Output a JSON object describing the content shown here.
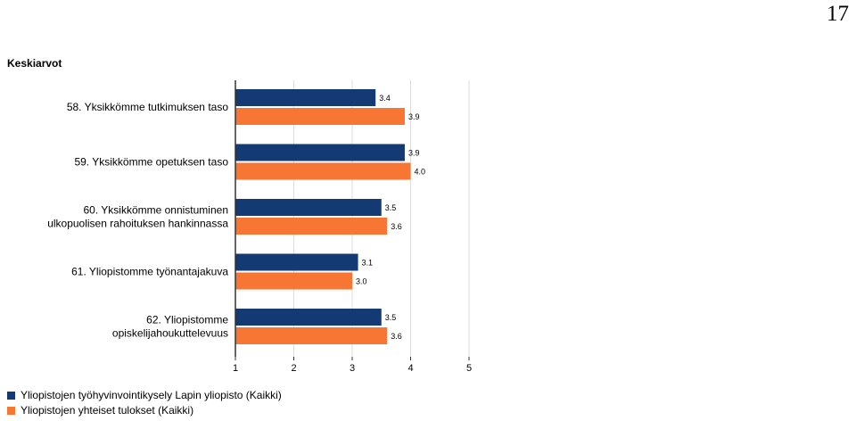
{
  "page": {
    "number": "17"
  },
  "colors": {
    "series1": "#143a74",
    "series2": "#f77634",
    "axis": "#333333",
    "grid": "#dddddd"
  },
  "chart_data": {
    "type": "bar",
    "orientation": "horizontal",
    "title": "Keskiarvot",
    "xlabel": "",
    "ylabel": "",
    "xlim": [
      1,
      5
    ],
    "x_ticks": [
      "1",
      "2",
      "3",
      "4",
      "5"
    ],
    "grid": true,
    "legend_position": "bottom-left",
    "categories": [
      [
        "58. Yksikkömme tutkimuksen taso"
      ],
      [
        "59. Yksikkömme opetuksen taso"
      ],
      [
        "60. Yksikkömme onnistuminen",
        "ulkopuolisen rahoituksen hankinnassa"
      ],
      [
        "61. Yliopistomme työnantajakuva"
      ],
      [
        "62. Yliopistomme",
        "opiskelijahoukuttelevuus"
      ]
    ],
    "series": [
      {
        "name": "Yliopistojen työhyvinvointikysely Lapin yliopisto (Kaikki)",
        "values": [
          3.4,
          3.9,
          3.5,
          3.1,
          3.5
        ],
        "labels": [
          "3.4",
          "3.9",
          "3.5",
          "3.1",
          "3.5"
        ]
      },
      {
        "name": "Yliopistojen yhteiset tulokset (Kaikki)",
        "values": [
          3.9,
          4.0,
          3.6,
          3.0,
          3.6
        ],
        "labels": [
          "3.9",
          "4.0",
          "3.6",
          "3.0",
          "3.6"
        ]
      }
    ]
  }
}
